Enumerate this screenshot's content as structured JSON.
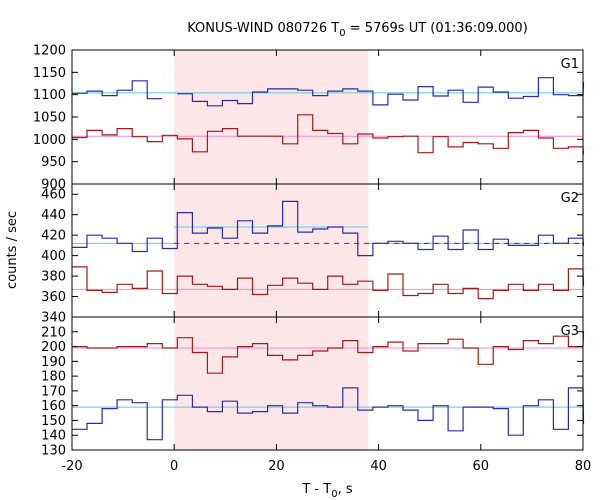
{
  "chart_data": {
    "type": "line",
    "title": "KONUS-WIND 080726 T",
    "title_sub": "0",
    "title_rest": " = 5769s UT (01:36:09.000)",
    "xlabel": "T - T",
    "xlabel_sub": "0",
    "xlabel_rest": ", s",
    "ylabel": "counts / sec",
    "xlim": [
      -20,
      80
    ],
    "x_ticks": [
      -20,
      0,
      20,
      40,
      60,
      80
    ],
    "shaded_interval": [
      0,
      38
    ],
    "bin_width": 2.944,
    "bin_start": -20,
    "panels": [
      {
        "name": "G1",
        "ylim": [
          900,
          1200
        ],
        "y_ticks": [
          900,
          950,
          1000,
          1050,
          1100,
          1150,
          1200
        ],
        "series": [
          {
            "color": "#2b2baa",
            "fit_level": 1104,
            "fit_color": "#5bc8e6",
            "values": [
              1103,
              1108,
              1098,
              1110,
              1131,
              1091,
              null,
              1102,
              1085,
              1075,
              1087,
              1080,
              1106,
              1113,
              1113,
              1110,
              1098,
              1108,
              1113,
              1108,
              1077,
              1101,
              1088,
              1118,
              1097,
              1110,
              1083,
              1117,
              1106,
              1092,
              1096,
              1138,
              1100,
              1098,
              1127
            ]
          },
          {
            "color": "#a01c1c",
            "fit_level": 1007,
            "fit_color": "#f08ad0",
            "values": [
              1004,
              1020,
              1010,
              1024,
              1006,
              995,
              1009,
              1001,
              972,
              1018,
              1024,
              1007,
              1007,
              1007,
              990,
              1055,
              1020,
              1013,
              990,
              1012,
              1003,
              1006,
              1007,
              970,
              1006,
              983,
              993,
              990,
              980,
              1015,
              1020,
              1003,
              980,
              983,
              968
            ]
          }
        ]
      },
      {
        "name": "G2",
        "ylim": [
          340,
          470
        ],
        "y_ticks": [
          340,
          360,
          380,
          400,
          420,
          440,
          460
        ],
        "series": [
          {
            "color": "#2b2baa",
            "fit_level": 412,
            "fit_level_before": 412,
            "fit_level_during": 428,
            "fit_level_after": 412,
            "fit_color": "#5bc8e6",
            "dashed_level": 412,
            "values": [
              408,
              420,
              417,
              412,
              404,
              417,
              407,
              442,
              422,
              427,
              417,
              434,
              422,
              429,
              453,
              423,
              426,
              428,
              422,
              400,
              412,
              414,
              412,
              406,
              419,
              406,
              425,
              406,
              416,
              410,
              410,
              420,
              412,
              417,
              410
            ]
          },
          {
            "color": "#a01c1c",
            "fit_level": 367,
            "fit_color": "#f08ad0",
            "values": [
              389,
              366,
              364,
              372,
              368,
              385,
              363,
              380,
              372,
              370,
              367,
              378,
              362,
              371,
              378,
              373,
              367,
              380,
              372,
              375,
              366,
              382,
              361,
              363,
              372,
              363,
              368,
              358,
              366,
              372,
              366,
              372,
              366,
              387,
              371
            ]
          }
        ]
      },
      {
        "name": "G3",
        "ylim": [
          130,
          220
        ],
        "y_ticks": [
          130,
          140,
          150,
          160,
          170,
          180,
          190,
          200,
          210
        ],
        "series": [
          {
            "color": "#a01c1c",
            "fit_level": 199,
            "fit_color": "#f08ad0",
            "values": [
              200,
              199,
              199,
              200,
              200,
              202,
              199,
              206,
              196,
              182,
              193,
              200,
              202,
              194,
              191,
              194,
              197,
              199,
              204,
              196,
              200,
              203,
              197,
              202,
              202,
              205,
              199,
              188,
              200,
              198,
              204,
              202,
              207,
              200,
              210
            ]
          },
          {
            "color": "#2b2baa",
            "fit_level": 159,
            "fit_color": "#5bc8e6",
            "values": [
              144,
              148,
              158,
              164,
              162,
              137,
              164,
              167,
              159,
              156,
              163,
              155,
              156,
              160,
              155,
              162,
              160,
              159,
              172,
              157,
              159,
              160,
              157,
              150,
              160,
              143,
              159,
              159,
              158,
              140,
              160,
              164,
              144,
              172,
              148
            ]
          }
        ]
      }
    ]
  }
}
